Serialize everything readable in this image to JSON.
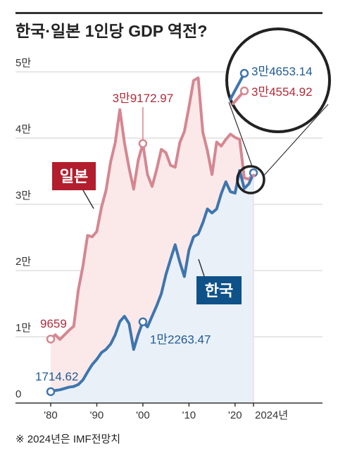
{
  "title": "한국·일본 1인당 GDP 역전?",
  "footnote": "※ 2024년은 IMF전망치",
  "colors": {
    "japan_line": "#d58791",
    "japan_fill": "#fbe9ea",
    "japan_text": "#b12b39",
    "japan_badge": "#b21e2d",
    "korea_line": "#3e75ae",
    "korea_fill": "#e9f0f8",
    "korea_text": "#1f5a93",
    "korea_badge": "#0f5189",
    "grid": "#cfcfcf",
    "axis": "#333333"
  },
  "chart_data": {
    "type": "area",
    "title": "한국·일본 1인당 GDP 역전?",
    "xlabel": "",
    "ylabel": "",
    "xlim": [
      1980,
      2024
    ],
    "ylim": [
      0,
      50000
    ],
    "y_ticks": [
      {
        "value": 0,
        "label": "0"
      },
      {
        "value": 10000,
        "label": "1만"
      },
      {
        "value": 20000,
        "label": "2만"
      },
      {
        "value": 30000,
        "label": "3만"
      },
      {
        "value": 40000,
        "label": "4만"
      },
      {
        "value": 50000,
        "label": "5만"
      }
    ],
    "x_ticks": [
      {
        "value": 1980,
        "label": "'80"
      },
      {
        "value": 1990,
        "label": "'90"
      },
      {
        "value": 2000,
        "label": "'00"
      },
      {
        "value": 2010,
        "label": "'10"
      },
      {
        "value": 2020,
        "label": "'20"
      },
      {
        "value": 2024,
        "label": "2024년"
      }
    ],
    "grid": true,
    "series": [
      {
        "name": "일본",
        "key": "japan",
        "x": [
          1980,
          1981,
          1982,
          1983,
          1984,
          1985,
          1986,
          1987,
          1988,
          1989,
          1990,
          1991,
          1992,
          1993,
          1994,
          1995,
          1996,
          1997,
          1998,
          1999,
          2000,
          2001,
          2002,
          2003,
          2004,
          2005,
          2006,
          2007,
          2008,
          2009,
          2010,
          2011,
          2012,
          2013,
          2014,
          2015,
          2016,
          2017,
          2018,
          2019,
          2020,
          2021,
          2022,
          2023,
          2024
        ],
        "y": [
          9659,
          10300,
          9600,
          10300,
          11000,
          11600,
          17100,
          20700,
          25300,
          25100,
          25900,
          29500,
          32100,
          36400,
          39300,
          44300,
          39300,
          35500,
          32300,
          36700,
          39172.97,
          34500,
          32700,
          35300,
          38300,
          37800,
          35900,
          35600,
          39300,
          41000,
          44700,
          48700,
          49100,
          40900,
          38100,
          34500,
          39400,
          38800,
          39800,
          40600,
          40100,
          39800,
          34000,
          33800,
          34554.92
        ]
      },
      {
        "name": "한국",
        "key": "korea",
        "x": [
          1980,
          1981,
          1982,
          1983,
          1984,
          1985,
          1986,
          1987,
          1988,
          1989,
          1990,
          1991,
          1992,
          1993,
          1994,
          1995,
          1996,
          1997,
          1998,
          1999,
          2000,
          2001,
          2002,
          2003,
          2004,
          2005,
          2006,
          2007,
          2008,
          2009,
          2010,
          2011,
          2012,
          2013,
          2014,
          2015,
          2016,
          2017,
          2018,
          2019,
          2020,
          2021,
          2022,
          2023,
          2024
        ],
        "y": [
          1714.62,
          1900,
          2000,
          2200,
          2400,
          2500,
          2800,
          3500,
          4700,
          5800,
          6600,
          7600,
          8100,
          8900,
          10300,
          12300,
          13100,
          12000,
          8100,
          10400,
          12263.47,
          11500,
          13100,
          14700,
          16500,
          19400,
          21700,
          23900,
          21300,
          19100,
          23100,
          25100,
          25500,
          27200,
          29300,
          28700,
          29300,
          31600,
          33400,
          31900,
          31700,
          35100,
          32400,
          33100,
          34653.14
        ]
      }
    ],
    "labels": {
      "japan_start": "9659",
      "korea_start": "1714.62",
      "japan_2000": "3만9172.97",
      "korea_2000": "1만2263.47",
      "korea_2024": "3만4653.14",
      "japan_2024": "3만4554.92"
    },
    "badges": {
      "japan": "일본",
      "korea": "한국"
    }
  }
}
